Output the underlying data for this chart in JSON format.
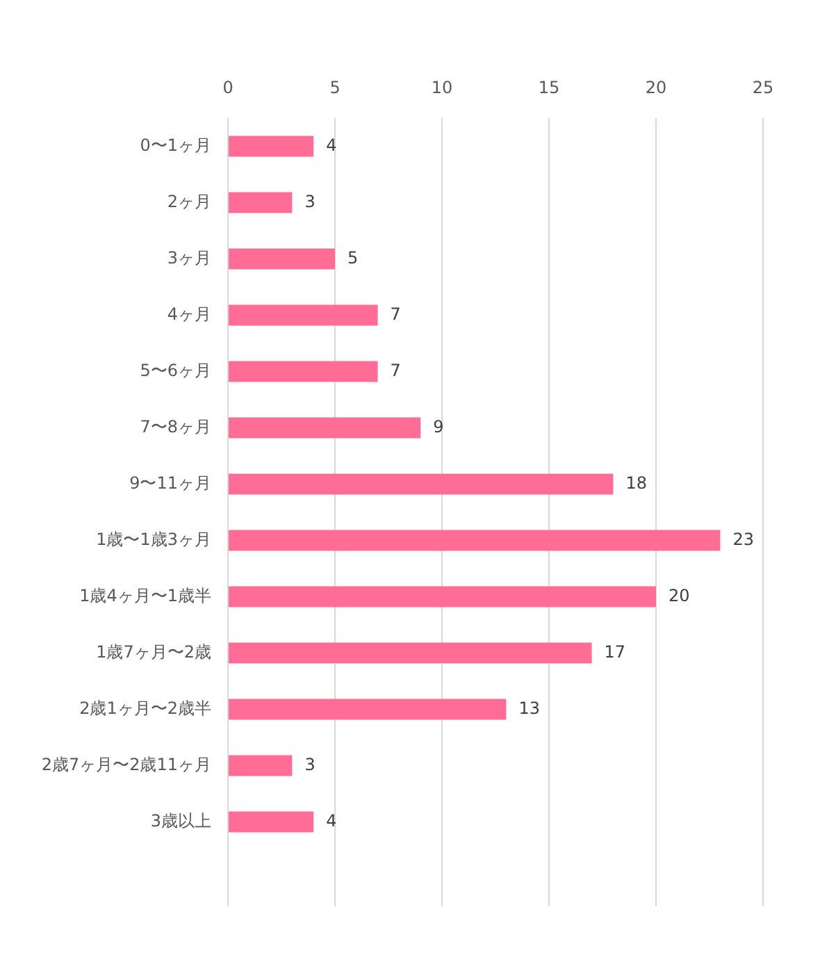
{
  "chart_data": {
    "type": "bar",
    "orientation": "horizontal",
    "categories": [
      "0〜1ヶ月",
      "2ヶ月",
      "3ヶ月",
      "4ヶ月",
      "5〜6ヶ月",
      "7〜8ヶ月",
      "9〜11ヶ月",
      "1歳〜1歳3ヶ月",
      "1歳4ヶ月〜1歳半",
      "1歳7ヶ月〜2歳",
      "2歳1ヶ月〜2歳半",
      "2歳7ヶ月〜2歳11ヶ月",
      "3歳以上",
      null
    ],
    "values": [
      4,
      3,
      5,
      7,
      7,
      9,
      18,
      23,
      20,
      17,
      13,
      3,
      4,
      null
    ],
    "color": "#ff6c96",
    "xlim": [
      0,
      25
    ],
    "xticks": [
      0,
      5,
      10,
      15,
      20,
      25
    ],
    "grid": "x",
    "data_labels": true
  }
}
